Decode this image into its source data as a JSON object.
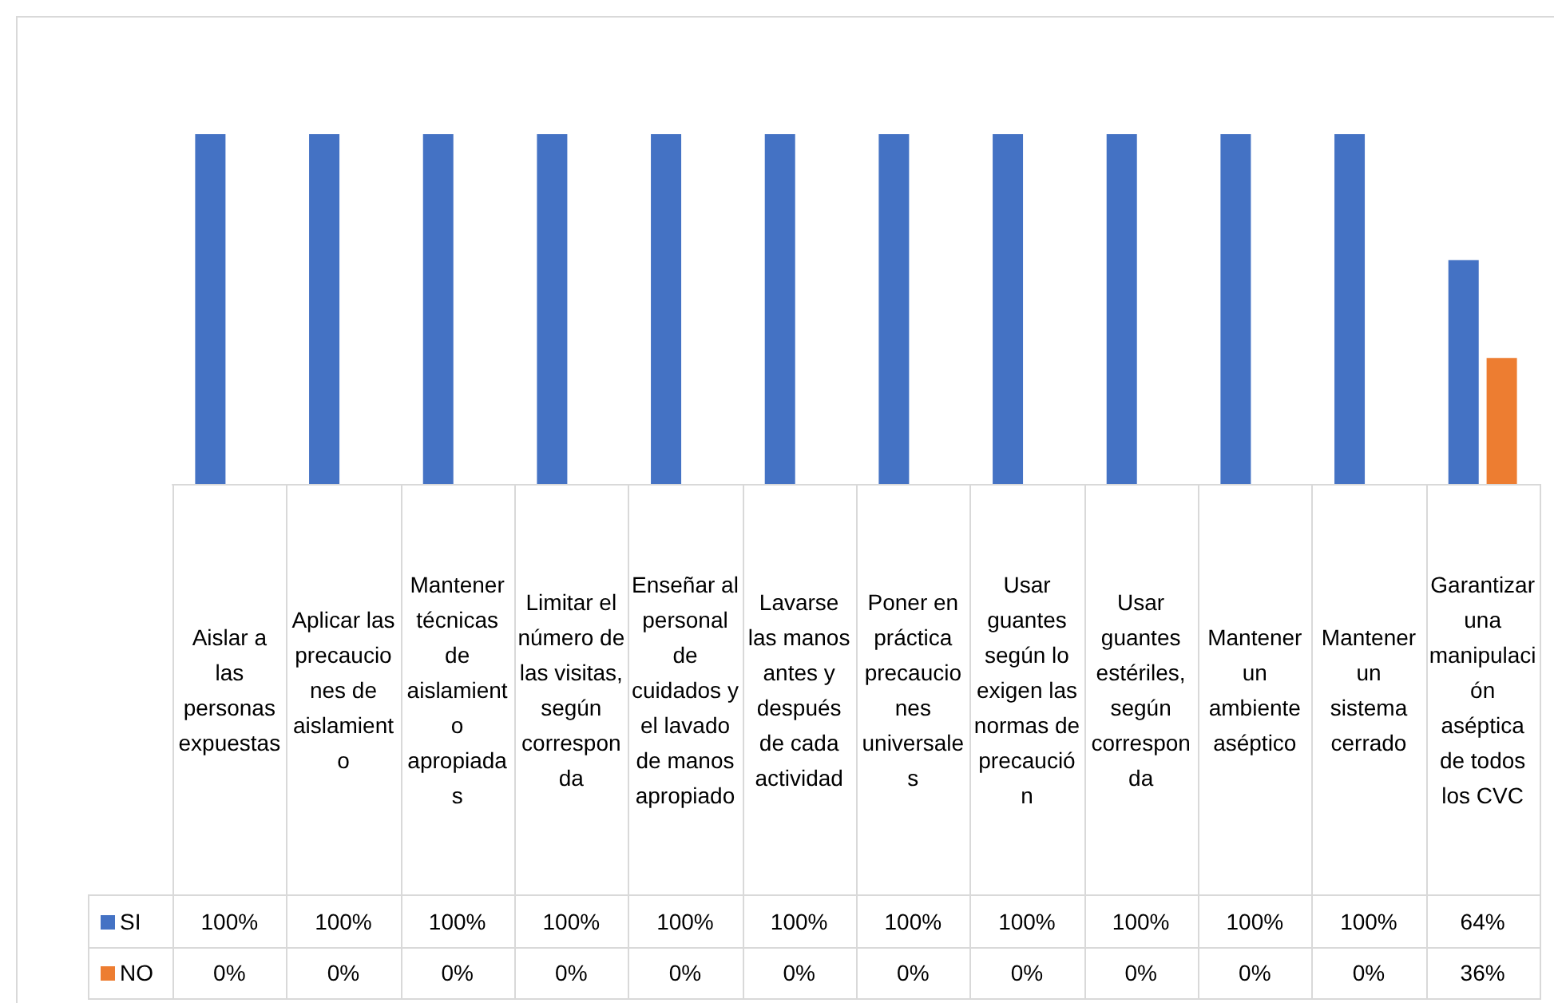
{
  "chart_data": {
    "type": "bar",
    "categories": [
      "Aislar a las personas expuestas",
      "Aplicar las precauciones de aislamiento",
      "Mantener técnicas de aislamiento apropiadas",
      "Limitar el número de las visitas, según corresponda",
      "Enseñar al personal de cuidados y el lavado de manos apropiado",
      "Lavarse las manos antes y después de cada actividad",
      "Poner en práctica precauciones universales",
      "Usar guantes según lo exigen las normas de precaución",
      "Usar guantes estériles, según corresponda",
      "Mantener un ambiente aséptico",
      "Mantener un sistema cerrado",
      "Garantizar una manipulación aséptica de todos los CVC"
    ],
    "series": [
      {
        "name": "SI",
        "color": "#4472c4",
        "values": [
          100,
          100,
          100,
          100,
          100,
          100,
          100,
          100,
          100,
          100,
          100,
          64
        ],
        "value_labels": [
          "100%",
          "100%",
          "100%",
          "100%",
          "100%",
          "100%",
          "100%",
          "100%",
          "100%",
          "100%",
          "100%",
          "64%"
        ]
      },
      {
        "name": "NO",
        "color": "#ed7d31",
        "values": [
          0,
          0,
          0,
          0,
          0,
          0,
          0,
          0,
          0,
          0,
          0,
          36
        ],
        "value_labels": [
          "0%",
          "0%",
          "0%",
          "0%",
          "0%",
          "0%",
          "0%",
          "0%",
          "0%",
          "0%",
          "0%",
          "36%"
        ]
      }
    ],
    "legend": "bottom"
  }
}
